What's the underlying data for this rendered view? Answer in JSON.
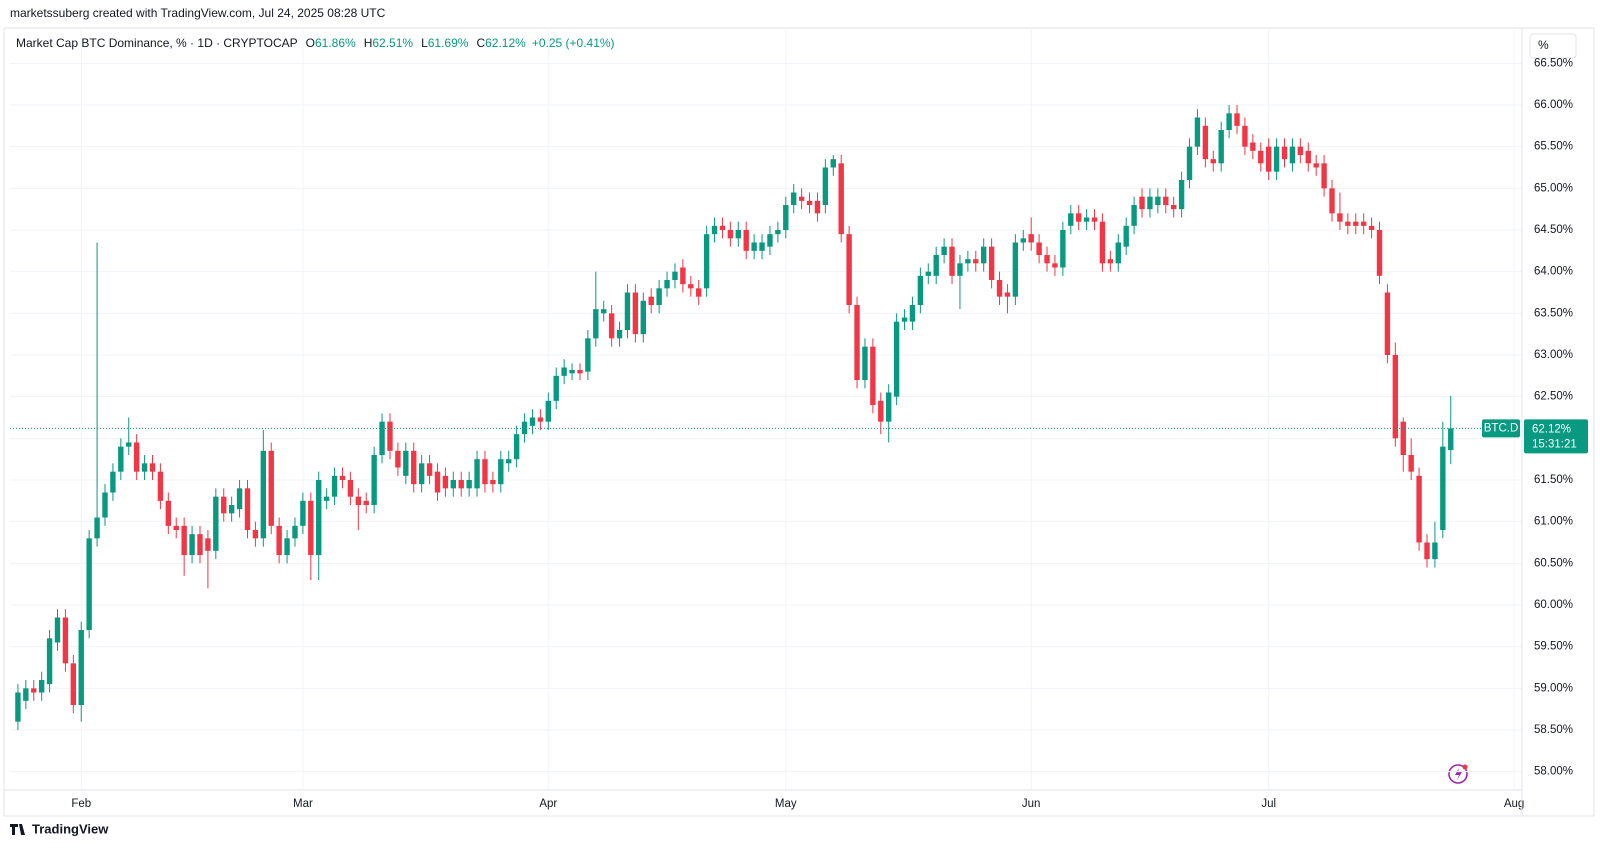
{
  "attribution": "marketssuberg created with TradingView.com, Jul 24, 2025 08:28 UTC",
  "footer": "TradingView",
  "scale_button": "%",
  "chart_data": {
    "type": "candlestick",
    "title": "Market Cap BTC Dominance, % · 1D · CRYPTOCAP",
    "ohlc_legend": [
      {
        "key": "O",
        "value": "61.86%"
      },
      {
        "key": "H",
        "value": "62.51%"
      },
      {
        "key": "L",
        "value": "61.69%"
      },
      {
        "key": "C",
        "value": "62.12%"
      }
    ],
    "change": "+0.25 (+0.41%)",
    "up_color": "#089981",
    "down_color": "#f23645",
    "grid": true,
    "xlim": [
      "2025-01-23",
      "2025-08-02"
    ],
    "xticks": [
      {
        "value": "2025-02-01",
        "label": "Feb"
      },
      {
        "value": "2025-03-01",
        "label": "Mar"
      },
      {
        "value": "2025-04-01",
        "label": "Apr"
      },
      {
        "value": "2025-05-01",
        "label": "May"
      },
      {
        "value": "2025-06-01",
        "label": "Jun"
      },
      {
        "value": "2025-07-01",
        "label": "Jul"
      },
      {
        "value": "2025-08-01",
        "label": "Aug"
      }
    ],
    "ylim": [
      57.78,
      66.9
    ],
    "yticks": [
      {
        "value": 58,
        "label": "58.00%"
      },
      {
        "value": 58.5,
        "label": "58.50%"
      },
      {
        "value": 59,
        "label": "59.00%"
      },
      {
        "value": 59.5,
        "label": "59.50%"
      },
      {
        "value": 60,
        "label": "60.00%"
      },
      {
        "value": 60.5,
        "label": "60.50%"
      },
      {
        "value": 61,
        "label": "61.00%"
      },
      {
        "value": 61.5,
        "label": "61.50%"
      },
      {
        "value": 62,
        "label": "62.00%"
      },
      {
        "value": 62.5,
        "label": "62.50%"
      },
      {
        "value": 63,
        "label": "63.00%"
      },
      {
        "value": 63.5,
        "label": "63.50%"
      },
      {
        "value": 64,
        "label": "64.00%"
      },
      {
        "value": 64.5,
        "label": "64.50%"
      },
      {
        "value": 65,
        "label": "65.00%"
      },
      {
        "value": 65.5,
        "label": "65.50%"
      },
      {
        "value": 66,
        "label": "66.00%"
      },
      {
        "value": 66.5,
        "label": "66.50%"
      }
    ],
    "last_price": {
      "symbol": "BTC.D",
      "value": 62.12,
      "label": "62.12%",
      "countdown": "15:31:21"
    },
    "x": [
      "2025-01-24",
      "2025-01-25",
      "2025-01-26",
      "2025-01-27",
      "2025-01-28",
      "2025-01-29",
      "2025-01-30",
      "2025-01-31",
      "2025-02-01",
      "2025-02-02",
      "2025-02-03",
      "2025-02-04",
      "2025-02-05",
      "2025-02-06",
      "2025-02-07",
      "2025-02-08",
      "2025-02-09",
      "2025-02-10",
      "2025-02-11",
      "2025-02-12",
      "2025-02-13",
      "2025-02-14",
      "2025-02-15",
      "2025-02-16",
      "2025-02-17",
      "2025-02-18",
      "2025-02-19",
      "2025-02-20",
      "2025-02-21",
      "2025-02-22",
      "2025-02-23",
      "2025-02-24",
      "2025-02-25",
      "2025-02-26",
      "2025-02-27",
      "2025-02-28",
      "2025-03-01",
      "2025-03-02",
      "2025-03-03",
      "2025-03-04",
      "2025-03-05",
      "2025-03-06",
      "2025-03-07",
      "2025-03-08",
      "2025-03-09",
      "2025-03-10",
      "2025-03-11",
      "2025-03-12",
      "2025-03-13",
      "2025-03-14",
      "2025-03-15",
      "2025-03-16",
      "2025-03-17",
      "2025-03-18",
      "2025-03-19",
      "2025-03-20",
      "2025-03-21",
      "2025-03-22",
      "2025-03-23",
      "2025-03-24",
      "2025-03-25",
      "2025-03-26",
      "2025-03-27",
      "2025-03-28",
      "2025-03-29",
      "2025-03-30",
      "2025-03-31",
      "2025-04-01",
      "2025-04-02",
      "2025-04-03",
      "2025-04-04",
      "2025-04-05",
      "2025-04-06",
      "2025-04-07",
      "2025-04-08",
      "2025-04-09",
      "2025-04-10",
      "2025-04-11",
      "2025-04-12",
      "2025-04-13",
      "2025-04-14",
      "2025-04-15",
      "2025-04-16",
      "2025-04-17",
      "2025-04-18",
      "2025-04-19",
      "2025-04-20",
      "2025-04-21",
      "2025-04-22",
      "2025-04-23",
      "2025-04-24",
      "2025-04-25",
      "2025-04-26",
      "2025-04-27",
      "2025-04-28",
      "2025-04-29",
      "2025-04-30",
      "2025-05-01",
      "2025-05-02",
      "2025-05-03",
      "2025-05-04",
      "2025-05-05",
      "2025-05-06",
      "2025-05-07",
      "2025-05-08",
      "2025-05-09",
      "2025-05-10",
      "2025-05-11",
      "2025-05-12",
      "2025-05-13",
      "2025-05-14",
      "2025-05-15",
      "2025-05-16",
      "2025-05-17",
      "2025-05-18",
      "2025-05-19",
      "2025-05-20",
      "2025-05-21",
      "2025-05-22",
      "2025-05-23",
      "2025-05-24",
      "2025-05-25",
      "2025-05-26",
      "2025-05-27",
      "2025-05-28",
      "2025-05-29",
      "2025-05-30",
      "2025-05-31",
      "2025-06-01",
      "2025-06-02",
      "2025-06-03",
      "2025-06-04",
      "2025-06-05",
      "2025-06-06",
      "2025-06-07",
      "2025-06-08",
      "2025-06-09",
      "2025-06-10",
      "2025-06-11",
      "2025-06-12",
      "2025-06-13",
      "2025-06-14",
      "2025-06-15",
      "2025-06-16",
      "2025-06-17",
      "2025-06-18",
      "2025-06-19",
      "2025-06-20",
      "2025-06-21",
      "2025-06-22",
      "2025-06-23",
      "2025-06-24",
      "2025-06-25",
      "2025-06-26",
      "2025-06-27",
      "2025-06-28",
      "2025-06-29",
      "2025-06-30",
      "2025-07-01",
      "2025-07-02",
      "2025-07-03",
      "2025-07-04",
      "2025-07-05",
      "2025-07-06",
      "2025-07-07",
      "2025-07-08",
      "2025-07-09",
      "2025-07-10",
      "2025-07-11",
      "2025-07-12",
      "2025-07-13",
      "2025-07-14",
      "2025-07-15",
      "2025-07-16",
      "2025-07-17",
      "2025-07-18",
      "2025-07-19",
      "2025-07-20",
      "2025-07-21",
      "2025-07-22",
      "2025-07-23",
      "2025-07-24"
    ],
    "open": [
      58.6,
      58.85,
      59.0,
      58.95,
      59.05,
      59.55,
      59.85,
      59.3,
      58.8,
      59.7,
      60.8,
      61.05,
      61.35,
      61.6,
      61.9,
      61.95,
      61.6,
      61.7,
      61.6,
      61.25,
      60.95,
      60.95,
      60.6,
      60.85,
      60.8,
      60.65,
      61.3,
      61.1,
      61.15,
      61.4,
      60.9,
      60.8,
      61.85,
      60.95,
      60.6,
      60.8,
      60.95,
      61.25,
      60.6,
      61.25,
      61.3,
      61.55,
      61.5,
      61.3,
      61.25,
      61.2,
      61.8,
      62.2,
      61.85,
      61.55,
      61.85,
      61.45,
      61.7,
      61.6,
      61.55,
      61.4,
      61.5,
      61.4,
      61.4,
      61.75,
      61.5,
      61.45,
      61.7,
      61.75,
      62.05,
      62.15,
      62.25,
      62.2,
      62.45,
      62.75,
      62.78,
      62.82,
      62.8,
      63.2,
      63.5,
      63.5,
      63.2,
      63.3,
      63.75,
      63.25,
      63.7,
      63.6,
      63.8,
      63.9,
      64.05,
      63.85,
      63.8,
      63.8,
      64.45,
      64.55,
      64.5,
      64.4,
      64.5,
      64.25,
      64.25,
      64.3,
      64.45,
      64.5,
      64.8,
      64.9,
      64.85,
      64.85,
      64.8,
      65.25,
      65.3,
      64.45,
      63.6,
      62.7,
      63.1,
      62.45,
      62.2,
      62.5,
      63.4,
      63.4,
      63.6,
      63.95,
      63.95,
      64.2,
      64.3,
      63.95,
      64.1,
      64.15,
      64.1,
      64.3,
      63.9,
      63.75,
      63.7,
      64.35,
      64.45,
      64.35,
      64.2,
      64.1,
      64.05,
      64.55,
      64.7,
      64.6,
      64.65,
      64.6,
      64.15,
      64.1,
      64.3,
      64.55,
      64.9,
      64.75,
      64.8,
      64.9,
      64.8,
      64.75,
      65.1,
      65.5,
      65.75,
      65.35,
      65.3,
      65.7,
      65.9,
      65.75,
      65.55,
      65.45,
      65.5,
      65.2,
      65.5,
      65.3,
      65.5,
      65.45,
      65.3,
      65.3,
      65.0,
      64.7,
      64.6,
      64.6,
      64.6,
      64.55,
      64.5,
      63.75,
      63.0,
      62.2,
      61.8,
      61.55,
      60.75,
      60.55,
      60.9,
      61.86
    ],
    "high": [
      59.05,
      59.1,
      59.1,
      59.2,
      59.7,
      59.95,
      59.95,
      59.4,
      59.8,
      60.9,
      64.35,
      61.45,
      61.7,
      62.0,
      62.25,
      62.05,
      61.8,
      61.8,
      61.7,
      61.35,
      61.05,
      61.05,
      60.95,
      60.95,
      60.9,
      61.4,
      61.4,
      61.3,
      61.5,
      61.5,
      61.0,
      62.1,
      61.95,
      61.05,
      60.9,
      61.05,
      61.35,
      61.35,
      61.6,
      61.4,
      61.65,
      61.65,
      61.6,
      61.4,
      61.35,
      61.9,
      62.3,
      62.3,
      61.95,
      61.95,
      61.95,
      61.8,
      61.8,
      61.7,
      61.65,
      61.6,
      61.6,
      61.6,
      61.85,
      61.85,
      61.6,
      61.85,
      61.85,
      62.15,
      62.3,
      62.35,
      62.35,
      62.55,
      62.85,
      62.95,
      62.9,
      62.9,
      63.3,
      64.0,
      63.65,
      63.6,
      63.4,
      63.85,
      63.85,
      63.75,
      63.8,
      63.9,
      64.0,
      64.1,
      64.15,
      63.95,
      63.9,
      64.55,
      64.65,
      64.65,
      64.6,
      64.6,
      64.6,
      64.45,
      64.45,
      64.55,
      64.6,
      64.9,
      65.05,
      65.0,
      64.95,
      64.95,
      65.35,
      65.4,
      65.4,
      64.55,
      63.7,
      63.2,
      63.2,
      62.55,
      62.65,
      63.5,
      63.55,
      63.7,
      64.05,
      64.1,
      64.3,
      64.4,
      64.4,
      64.2,
      64.25,
      64.25,
      64.4,
      64.4,
      64.0,
      63.85,
      64.45,
      64.5,
      64.65,
      64.45,
      64.3,
      64.2,
      64.6,
      64.8,
      64.8,
      64.75,
      64.75,
      64.7,
      64.25,
      64.45,
      64.65,
      64.9,
      65.0,
      65.0,
      65.0,
      65.0,
      64.9,
      65.2,
      65.6,
      65.95,
      65.85,
      65.45,
      65.8,
      66.0,
      66.0,
      65.85,
      65.65,
      65.55,
      65.6,
      65.6,
      65.6,
      65.6,
      65.6,
      65.55,
      65.4,
      65.4,
      65.1,
      64.95,
      64.7,
      64.7,
      64.7,
      64.65,
      64.6,
      63.85,
      63.15,
      62.25,
      62.0,
      61.65,
      60.85,
      61.0,
      62.2,
      62.51
    ],
    "low": [
      58.5,
      58.75,
      58.85,
      58.85,
      58.95,
      59.45,
      59.2,
      58.7,
      58.6,
      59.6,
      60.7,
      60.95,
      61.25,
      61.5,
      61.8,
      61.5,
      61.5,
      61.5,
      61.15,
      60.85,
      60.8,
      60.35,
      60.5,
      60.5,
      60.2,
      60.55,
      61.0,
      61.0,
      61.05,
      60.8,
      60.7,
      60.7,
      60.85,
      60.5,
      60.5,
      60.7,
      60.85,
      60.3,
      60.3,
      61.15,
      61.2,
      61.4,
      61.2,
      60.9,
      61.1,
      61.1,
      61.7,
      61.75,
      61.55,
      61.45,
      61.35,
      61.35,
      61.45,
      61.25,
      61.3,
      61.3,
      61.3,
      61.3,
      61.3,
      61.35,
      61.35,
      61.35,
      61.6,
      61.65,
      61.95,
      62.05,
      62.1,
      62.1,
      62.35,
      62.65,
      62.7,
      62.7,
      62.7,
      63.1,
      63.4,
      63.1,
      63.1,
      63.2,
      63.15,
      63.15,
      63.5,
      63.5,
      63.7,
      63.8,
      63.75,
      63.7,
      63.6,
      63.7,
      64.35,
      64.4,
      64.3,
      64.3,
      64.15,
      64.15,
      64.15,
      64.2,
      64.35,
      64.4,
      64.7,
      64.75,
      64.7,
      64.6,
      64.7,
      65.15,
      64.35,
      63.5,
      62.6,
      62.6,
      62.3,
      62.05,
      61.95,
      62.4,
      63.3,
      63.3,
      63.5,
      63.85,
      63.85,
      64.1,
      63.85,
      63.55,
      64.0,
      64.0,
      64.0,
      63.8,
      63.6,
      63.5,
      63.6,
      64.25,
      64.25,
      64.1,
      64.0,
      63.95,
      63.95,
      64.45,
      64.5,
      64.5,
      64.5,
      64.0,
      64.0,
      64.0,
      64.2,
      64.45,
      64.65,
      64.65,
      64.7,
      64.7,
      64.65,
      64.65,
      65.0,
      65.4,
      65.25,
      65.2,
      65.2,
      65.6,
      65.65,
      65.4,
      65.35,
      65.2,
      65.1,
      65.1,
      65.25,
      65.2,
      65.3,
      65.2,
      65.15,
      64.9,
      64.6,
      64.5,
      64.45,
      64.45,
      64.45,
      64.4,
      63.85,
      62.9,
      61.9,
      61.6,
      61.5,
      60.65,
      60.45,
      60.45,
      60.8,
      61.69
    ],
    "close": [
      58.95,
      59.0,
      58.95,
      59.1,
      59.6,
      59.85,
      59.3,
      58.8,
      59.7,
      60.8,
      61.05,
      61.35,
      61.6,
      61.9,
      61.95,
      61.6,
      61.7,
      61.6,
      61.25,
      60.95,
      60.9,
      60.6,
      60.85,
      60.6,
      60.65,
      61.3,
      61.1,
      61.2,
      61.4,
      60.9,
      60.8,
      61.85,
      60.95,
      60.6,
      60.8,
      60.95,
      61.25,
      60.6,
      61.5,
      61.3,
      61.55,
      61.5,
      61.3,
      61.2,
      61.2,
      61.8,
      62.2,
      61.85,
      61.65,
      61.85,
      61.45,
      61.7,
      61.55,
      61.35,
      61.4,
      61.5,
      61.4,
      61.5,
      61.75,
      61.45,
      61.45,
      61.75,
      61.75,
      62.05,
      62.2,
      62.25,
      62.2,
      62.45,
      62.75,
      62.85,
      62.82,
      62.78,
      63.2,
      63.55,
      63.55,
      63.2,
      63.3,
      63.75,
      63.25,
      63.65,
      63.6,
      63.8,
      63.9,
      64.0,
      63.85,
      63.8,
      63.7,
      64.45,
      64.55,
      64.5,
      64.4,
      64.5,
      64.25,
      64.35,
      64.35,
      64.45,
      64.5,
      64.8,
      64.95,
      64.85,
      64.8,
      64.7,
      65.25,
      65.35,
      64.45,
      63.6,
      62.7,
      63.1,
      62.4,
      62.2,
      62.55,
      63.4,
      63.45,
      63.6,
      63.95,
      64.0,
      64.2,
      64.3,
      63.95,
      64.1,
      64.15,
      64.1,
      64.3,
      63.9,
      63.7,
      63.7,
      64.35,
      64.4,
      64.35,
      64.2,
      64.1,
      64.05,
      64.5,
      64.7,
      64.6,
      64.65,
      64.6,
      64.1,
      64.1,
      64.35,
      64.55,
      64.8,
      64.75,
      64.9,
      64.9,
      64.8,
      64.75,
      65.1,
      65.5,
      65.85,
      65.35,
      65.3,
      65.7,
      65.9,
      65.75,
      65.5,
      65.45,
      65.3,
      65.2,
      65.5,
      65.35,
      65.5,
      65.4,
      65.3,
      65.25,
      65.0,
      64.7,
      64.6,
      64.55,
      64.55,
      64.55,
      64.5,
      63.95,
      63.0,
      62.0,
      61.8,
      61.6,
      60.75,
      60.55,
      60.75,
      61.9,
      62.12
    ]
  }
}
